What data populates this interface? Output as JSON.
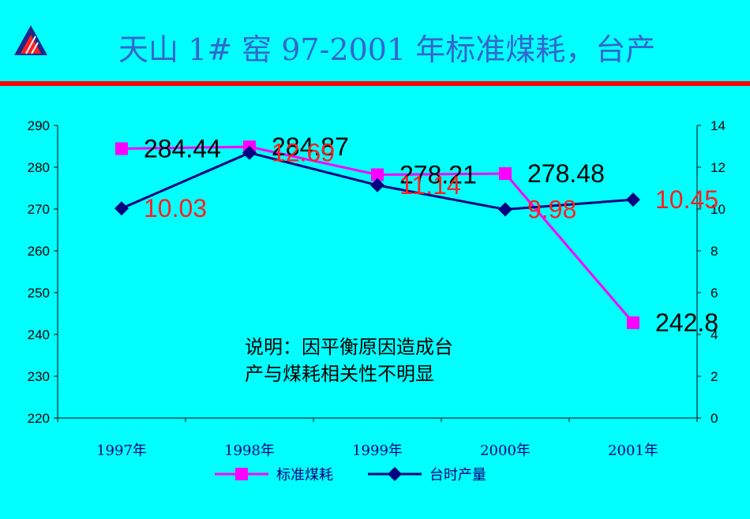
{
  "slide": {
    "title": "天山 1# 窑 97-2001 年标准煤耗，台产"
  },
  "chart_data": {
    "type": "line",
    "categories": [
      "1997年",
      "1998年",
      "1999年",
      "2000年",
      "2001年"
    ],
    "series": [
      {
        "name": "标准煤耗",
        "axis": "left",
        "color": "#ff00ff",
        "marker": "square",
        "values": [
          284.44,
          284.87,
          278.21,
          278.48,
          242.8
        ],
        "labels": [
          "284.44",
          "284.87",
          "278.21",
          "278.48",
          "242.8"
        ],
        "label_color": "#000000"
      },
      {
        "name": "台时产量",
        "axis": "right",
        "color": "#000080",
        "marker": "diamond",
        "values": [
          10.03,
          12.69,
          11.14,
          9.98,
          10.45
        ],
        "labels": [
          "10.03",
          "12.69",
          "11.14",
          "9.98",
          "10.45"
        ],
        "label_color": "#ff2020"
      }
    ],
    "y_left": {
      "min": 220,
      "max": 290,
      "ticks": [
        220,
        230,
        240,
        250,
        260,
        270,
        280,
        290
      ]
    },
    "y_right": {
      "min": 0,
      "max": 14,
      "ticks": [
        0,
        2,
        4,
        6,
        8,
        10,
        12,
        14
      ]
    },
    "grid": false,
    "legend_position": "bottom",
    "annotation": [
      "说明：因平衡原因造成台",
      "产与煤耗相关性不明显"
    ]
  }
}
